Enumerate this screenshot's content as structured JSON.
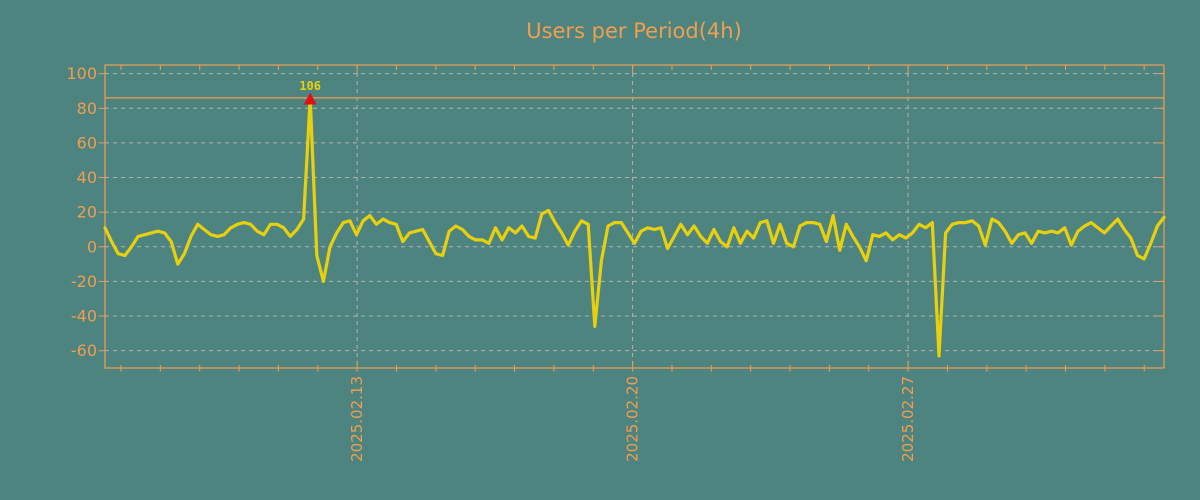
{
  "colors": {
    "background": "#4e8480",
    "axis_orange": "#f09e50",
    "grid_grey": "#b6b1af",
    "series_yellow": "#e8d00c",
    "marker_red": "#dd1111"
  },
  "chart_data": {
    "type": "line",
    "title": "Users per Period(4h)",
    "period": "4h",
    "legend": "none",
    "grid": "dashed",
    "y_ticks": [
      100,
      80,
      60,
      40,
      20,
      0,
      -20,
      -40,
      -60
    ],
    "y_range": [
      -70,
      105
    ],
    "x_tick_labels": [
      "2025.02.13",
      "2025.02.20",
      "2025.02.27"
    ],
    "x_minor_ticks_per_major": 7,
    "hline": {
      "value": 86,
      "style": "solid"
    },
    "annotations": [
      {
        "label": "106",
        "series_index": 31,
        "marker": "red-triangle-up"
      }
    ],
    "series": [
      {
        "name": "Users",
        "values": [
          11,
          3,
          -4,
          -5,
          0,
          6,
          7,
          8,
          9,
          8,
          3,
          -10,
          -4,
          6,
          13,
          10,
          7,
          6,
          7,
          11,
          13,
          14,
          13,
          9,
          7,
          13,
          13,
          11,
          6,
          10,
          16,
          86,
          -5,
          -20,
          0,
          8,
          14,
          15,
          7,
          15,
          18,
          13,
          16,
          14,
          13,
          3,
          8,
          9,
          10,
          3,
          -4,
          -5,
          9,
          12,
          10,
          6,
          4,
          4,
          2,
          11,
          4,
          11,
          8,
          12,
          6,
          5,
          19,
          21,
          14,
          8,
          1,
          9,
          15,
          13,
          -46,
          -8,
          12,
          14,
          14,
          8,
          2,
          9,
          11,
          10,
          11,
          -1,
          6,
          13,
          7,
          12,
          6,
          2,
          10,
          3,
          0,
          11,
          2,
          9,
          5,
          14,
          15,
          2,
          13,
          2,
          0,
          12,
          14,
          14,
          13,
          3,
          18,
          -2,
          13,
          6,
          0,
          -8,
          7,
          6,
          8,
          4,
          7,
          5,
          8,
          13,
          11,
          14,
          -63,
          8,
          13,
          14,
          14,
          15,
          12,
          1,
          16,
          14,
          9,
          2,
          7,
          8,
          2,
          9,
          8,
          9,
          8,
          11,
          1,
          9,
          12,
          14,
          11,
          8,
          12,
          16,
          10,
          5,
          -5,
          -7,
          2,
          12,
          17
        ]
      }
    ]
  }
}
